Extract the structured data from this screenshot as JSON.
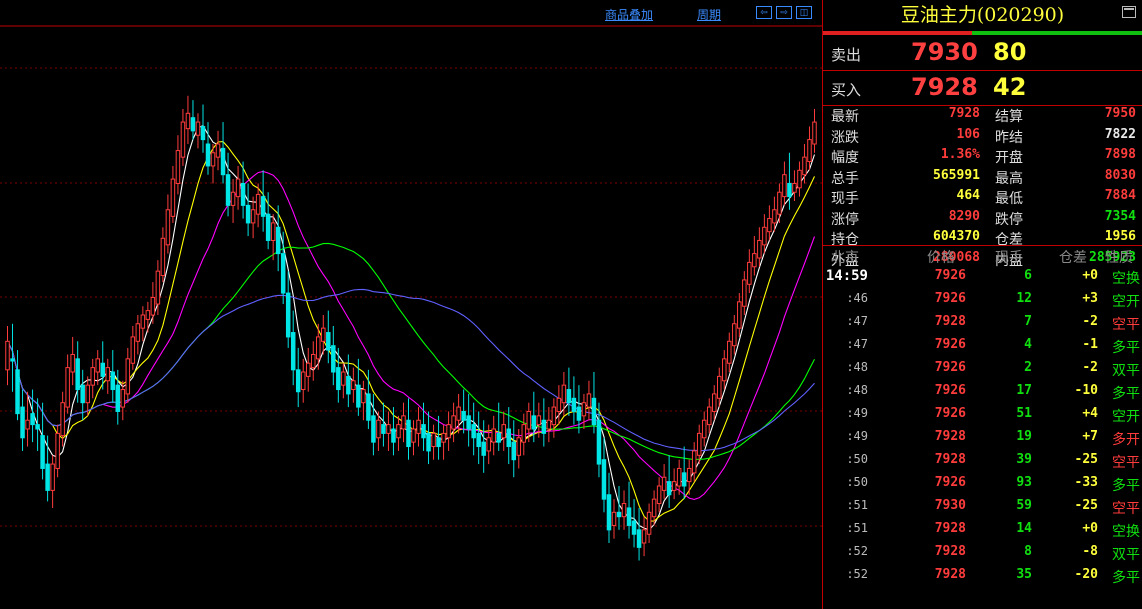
{
  "toolbar": {
    "overlay_label": "商品叠加",
    "period_label": "周期"
  },
  "instrument": {
    "title": "豆油主力(020290)"
  },
  "quote": {
    "sell_label": "卖出",
    "sell_price": "7930",
    "sell_volume": "80",
    "buy_label": "买入",
    "buy_price": "7928",
    "buy_volume": "42"
  },
  "stats": [
    {
      "label": "最新",
      "value": "7928",
      "color": "#ff3c3c",
      "label2": "结算",
      "value2": "7950",
      "color2": "#ff3c3c"
    },
    {
      "label": "涨跌",
      "value": "106",
      "color": "#ff3c3c",
      "label2": "昨结",
      "value2": "7822",
      "color2": "#e8e8e8"
    },
    {
      "label": "幅度",
      "value": "1.36%",
      "color": "#ff3c3c",
      "label2": "开盘",
      "value2": "7898",
      "color2": "#ff3c3c"
    },
    {
      "label": "总手",
      "value": "565991",
      "color": "#ffff3c",
      "label2": "最高",
      "value2": "8030",
      "color2": "#ff3c3c"
    },
    {
      "label": "现手",
      "value": "464",
      "color": "#ffff3c",
      "label2": "最低",
      "value2": "7884",
      "color2": "#ff3c3c"
    },
    {
      "label": "涨停",
      "value": "8290",
      "color": "#ff3c3c",
      "label2": "跌停",
      "value2": "7354",
      "color2": "#10e010"
    },
    {
      "label": "持仓",
      "value": "604370",
      "color": "#ffff3c",
      "label2": "仓差",
      "value2": "1956",
      "color2": "#ffff3c"
    },
    {
      "label": "外盘",
      "value": "280068",
      "color": "#ff3c3c",
      "label2": "内盘",
      "value2": "285923",
      "color2": "#10e010"
    }
  ],
  "ticks_header": {
    "time": "北京",
    "price": "价格",
    "volume": "现手",
    "oi_change": "仓差",
    "nature": "性质"
  },
  "ticks": [
    {
      "time": "14:59",
      "price": "7926",
      "vol": "6",
      "oi": "+0",
      "nature": "空换",
      "pc": "#ff3c3c",
      "oc": "#ffff3c",
      "nc": "#10e010"
    },
    {
      "time": ":46",
      "price": "7926",
      "vol": "12",
      "oi": "+3",
      "nature": "空开",
      "pc": "#ff3c3c",
      "oc": "#ffff3c",
      "nc": "#10e010"
    },
    {
      "time": ":47",
      "price": "7928",
      "vol": "7",
      "oi": "-2",
      "nature": "空平",
      "pc": "#ff3c3c",
      "oc": "#ffff3c",
      "nc": "#ff3c3c"
    },
    {
      "time": ":47",
      "price": "7926",
      "vol": "4",
      "oi": "-1",
      "nature": "多平",
      "pc": "#ff3c3c",
      "oc": "#ffff3c",
      "nc": "#10e010"
    },
    {
      "time": ":48",
      "price": "7926",
      "vol": "2",
      "oi": "-2",
      "nature": "双平",
      "pc": "#ff3c3c",
      "oc": "#ffff3c",
      "nc": "#10e010"
    },
    {
      "time": ":48",
      "price": "7926",
      "vol": "17",
      "oi": "-10",
      "nature": "多平",
      "pc": "#ff3c3c",
      "oc": "#ffff3c",
      "nc": "#10e010"
    },
    {
      "time": ":49",
      "price": "7926",
      "vol": "51",
      "oi": "+4",
      "nature": "空开",
      "pc": "#ff3c3c",
      "oc": "#ffff3c",
      "nc": "#10e010"
    },
    {
      "time": ":49",
      "price": "7928",
      "vol": "19",
      "oi": "+7",
      "nature": "多开",
      "pc": "#ff3c3c",
      "oc": "#ffff3c",
      "nc": "#ff3c3c"
    },
    {
      "time": ":50",
      "price": "7928",
      "vol": "39",
      "oi": "-25",
      "nature": "空平",
      "pc": "#ff3c3c",
      "oc": "#ffff3c",
      "nc": "#ff3c3c"
    },
    {
      "time": ":50",
      "price": "7926",
      "vol": "93",
      "oi": "-33",
      "nature": "多平",
      "pc": "#ff3c3c",
      "oc": "#ffff3c",
      "nc": "#10e010"
    },
    {
      "time": ":51",
      "price": "7930",
      "vol": "59",
      "oi": "-25",
      "nature": "空平",
      "pc": "#ff3c3c",
      "oc": "#ffff3c",
      "nc": "#ff3c3c"
    },
    {
      "time": ":51",
      "price": "7928",
      "vol": "14",
      "oi": "+0",
      "nature": "空换",
      "pc": "#ff3c3c",
      "oc": "#ffff3c",
      "nc": "#10e010"
    },
    {
      "time": ":52",
      "price": "7928",
      "vol": "8",
      "oi": "-8",
      "nature": "双平",
      "pc": "#ff3c3c",
      "oc": "#ffff3c",
      "nc": "#10e010"
    },
    {
      "time": ":52",
      "price": "7928",
      "vol": "35",
      "oi": "-20",
      "nature": "多平",
      "pc": "#ff3c3c",
      "oc": "#ffff3c",
      "nc": "#10e010"
    }
  ],
  "chart_data": {
    "type": "candlestick",
    "candles": [
      [
        7905,
        7925,
        7918,
        7898
      ],
      [
        7910,
        7926,
        7909,
        7895
      ],
      [
        7905,
        7914,
        7885,
        7882
      ],
      [
        7888,
        7896,
        7874,
        7868
      ],
      [
        7878,
        7895,
        7882,
        7870
      ],
      [
        7885,
        7896,
        7880,
        7872
      ],
      [
        7880,
        7892,
        7878,
        7868
      ],
      [
        7875,
        7890,
        7860,
        7855
      ],
      [
        7862,
        7875,
        7850,
        7845
      ],
      [
        7850,
        7866,
        7862,
        7842
      ],
      [
        7860,
        7880,
        7876,
        7856
      ],
      [
        7875,
        7895,
        7890,
        7870
      ],
      [
        7888,
        7912,
        7906,
        7885
      ],
      [
        7904,
        7920,
        7912,
        7898
      ],
      [
        7910,
        7918,
        7896,
        7890
      ],
      [
        7898,
        7905,
        7890,
        7882
      ],
      [
        7890,
        7902,
        7898,
        7884
      ],
      [
        7898,
        7910,
        7906,
        7892
      ],
      [
        7904,
        7914,
        7910,
        7898
      ],
      [
        7908,
        7918,
        7902,
        7896
      ],
      [
        7900,
        7910,
        7906,
        7894
      ],
      [
        7904,
        7914,
        7896,
        7890
      ],
      [
        7898,
        7905,
        7886,
        7880
      ],
      [
        7888,
        7900,
        7896,
        7882
      ],
      [
        7894,
        7915,
        7910,
        7890
      ],
      [
        7908,
        7925,
        7920,
        7905
      ],
      [
        7918,
        7930,
        7926,
        7912
      ],
      [
        7924,
        7934,
        7930,
        7918
      ],
      [
        7928,
        7936,
        7932,
        7922
      ],
      [
        7930,
        7945,
        7938,
        7926
      ],
      [
        7935,
        7955,
        7950,
        7930
      ],
      [
        7948,
        7970,
        7965,
        7945
      ],
      [
        7962,
        7985,
        7978,
        7958
      ],
      [
        7975,
        7998,
        7992,
        7972
      ],
      [
        7990,
        8012,
        8005,
        7985
      ],
      [
        8002,
        8024,
        8018,
        7998
      ],
      [
        8015,
        8030,
        8022,
        8008
      ],
      [
        8020,
        8028,
        8014,
        8010
      ],
      [
        8012,
        8022,
        8018,
        8006
      ],
      [
        8016,
        8026,
        8010,
        8004
      ],
      [
        8008,
        8018,
        7998,
        7994
      ],
      [
        7998,
        8008,
        8004,
        7990
      ],
      [
        8002,
        8014,
        8008,
        7996
      ],
      [
        8006,
        8018,
        7994,
        7990
      ],
      [
        7994,
        8004,
        7980,
        7975
      ],
      [
        7980,
        7992,
        7986,
        7972
      ],
      [
        7984,
        7998,
        7992,
        7978
      ],
      [
        7990,
        8000,
        7980,
        7974
      ],
      [
        7980,
        7990,
        7972,
        7966
      ],
      [
        7972,
        7984,
        7978,
        7965
      ],
      [
        7976,
        7990,
        7985,
        7970
      ],
      [
        7984,
        7996,
        7975,
        7968
      ],
      [
        7976,
        7986,
        7964,
        7960
      ],
      [
        7964,
        7976,
        7972,
        7955
      ],
      [
        7970,
        7980,
        7958,
        7950
      ],
      [
        7958,
        7968,
        7940,
        7935
      ],
      [
        7940,
        7950,
        7920,
        7915
      ],
      [
        7922,
        7932,
        7905,
        7898
      ],
      [
        7905,
        7915,
        7895,
        7888
      ],
      [
        7896,
        7910,
        7904,
        7890
      ],
      [
        7902,
        7915,
        7908,
        7895
      ],
      [
        7906,
        7918,
        7912,
        7900
      ],
      [
        7910,
        7926,
        7920,
        7905
      ],
      [
        7918,
        7930,
        7924,
        7912
      ],
      [
        7922,
        7932,
        7914,
        7908
      ],
      [
        7916,
        7925,
        7904,
        7898
      ],
      [
        7906,
        7915,
        7896,
        7890
      ],
      [
        7898,
        7908,
        7904,
        7892
      ],
      [
        7902,
        7912,
        7894,
        7888
      ],
      [
        7896,
        7906,
        7900,
        7890
      ],
      [
        7898,
        7910,
        7888,
        7884
      ],
      [
        7890,
        7900,
        7896,
        7882
      ],
      [
        7894,
        7905,
        7882,
        7878
      ],
      [
        7884,
        7894,
        7872,
        7866
      ],
      [
        7874,
        7886,
        7882,
        7868
      ],
      [
        7880,
        7890,
        7876,
        7870
      ],
      [
        7876,
        7886,
        7880,
        7868
      ],
      [
        7878,
        7888,
        7872,
        7866
      ],
      [
        7874,
        7884,
        7880,
        7868
      ],
      [
        7878,
        7890,
        7884,
        7872
      ],
      [
        7882,
        7892,
        7870,
        7864
      ],
      [
        7872,
        7882,
        7878,
        7866
      ],
      [
        7876,
        7888,
        7882,
        7870
      ],
      [
        7880,
        7890,
        7874,
        7868
      ],
      [
        7876,
        7886,
        7868,
        7862
      ],
      [
        7870,
        7880,
        7876,
        7864
      ],
      [
        7874,
        7884,
        7870,
        7864
      ],
      [
        7872,
        7880,
        7876,
        7864
      ],
      [
        7874,
        7886,
        7880,
        7868
      ],
      [
        7878,
        7890,
        7884,
        7872
      ],
      [
        7882,
        7894,
        7888,
        7876
      ],
      [
        7886,
        7896,
        7882,
        7876
      ],
      [
        7884,
        7894,
        7878,
        7870
      ],
      [
        7880,
        7890,
        7874,
        7866
      ],
      [
        7876,
        7886,
        7870,
        7862
      ],
      [
        7872,
        7882,
        7866,
        7858
      ],
      [
        7868,
        7880,
        7874,
        7862
      ],
      [
        7872,
        7884,
        7878,
        7866
      ],
      [
        7876,
        7890,
        7872,
        7868
      ],
      [
        7874,
        7886,
        7880,
        7868
      ],
      [
        7878,
        7888,
        7870,
        7862
      ],
      [
        7872,
        7882,
        7864,
        7856
      ],
      [
        7866,
        7878,
        7874,
        7860
      ],
      [
        7872,
        7885,
        7880,
        7866
      ],
      [
        7878,
        7890,
        7886,
        7872
      ],
      [
        7884,
        7895,
        7878,
        7872
      ],
      [
        7880,
        7890,
        7884,
        7874
      ],
      [
        7882,
        7892,
        7876,
        7870
      ],
      [
        7878,
        7888,
        7882,
        7872
      ],
      [
        7880,
        7892,
        7888,
        7874
      ],
      [
        7886,
        7898,
        7892,
        7880
      ],
      [
        7890,
        7904,
        7898,
        7884
      ],
      [
        7896,
        7906,
        7890,
        7884
      ],
      [
        7892,
        7902,
        7886,
        7880
      ],
      [
        7888,
        7898,
        7882,
        7876
      ],
      [
        7884,
        7894,
        7890,
        7878
      ],
      [
        7888,
        7900,
        7894,
        7882
      ],
      [
        7892,
        7904,
        7880,
        7876
      ],
      [
        7882,
        7890,
        7862,
        7856
      ],
      [
        7864,
        7874,
        7846,
        7840
      ],
      [
        7848,
        7858,
        7832,
        7826
      ],
      [
        7834,
        7846,
        7840,
        7828
      ],
      [
        7840,
        7852,
        7838,
        7832
      ],
      [
        7838,
        7850,
        7844,
        7832
      ],
      [
        7842,
        7854,
        7834,
        7828
      ],
      [
        7836,
        7846,
        7830,
        7824
      ],
      [
        7832,
        7842,
        7824,
        7818
      ],
      [
        7826,
        7838,
        7832,
        7820
      ],
      [
        7830,
        7844,
        7840,
        7826
      ],
      [
        7838,
        7850,
        7846,
        7834
      ],
      [
        7844,
        7856,
        7852,
        7840
      ],
      [
        7850,
        7862,
        7856,
        7846
      ],
      [
        7854,
        7866,
        7848,
        7842
      ],
      [
        7850,
        7860,
        7854,
        7846
      ],
      [
        7852,
        7864,
        7860,
        7848
      ],
      [
        7858,
        7870,
        7852,
        7846
      ],
      [
        7854,
        7864,
        7860,
        7848
      ],
      [
        7858,
        7872,
        7868,
        7854
      ],
      [
        7866,
        7880,
        7876,
        7862
      ],
      [
        7874,
        7886,
        7882,
        7870
      ],
      [
        7880,
        7892,
        7888,
        7876
      ],
      [
        7886,
        7898,
        7894,
        7882
      ],
      [
        7892,
        7906,
        7902,
        7888
      ],
      [
        7900,
        7914,
        7910,
        7896
      ],
      [
        7908,
        7922,
        7918,
        7904
      ],
      [
        7916,
        7930,
        7926,
        7912
      ],
      [
        7924,
        7940,
        7936,
        7920
      ],
      [
        7934,
        7950,
        7946,
        7930
      ],
      [
        7944,
        7960,
        7954,
        7940
      ],
      [
        7952,
        7966,
        7958,
        7948
      ],
      [
        7956,
        7970,
        7964,
        7952
      ],
      [
        7962,
        7976,
        7970,
        7958
      ],
      [
        7968,
        7980,
        7974,
        7964
      ],
      [
        7972,
        7984,
        7978,
        7968
      ],
      [
        7976,
        7990,
        7986,
        7972
      ],
      [
        7984,
        8000,
        7994,
        7980
      ],
      [
        7990,
        8004,
        7984,
        7978
      ],
      [
        7986,
        7996,
        7990,
        7982
      ],
      [
        7988,
        8000,
        7996,
        7984
      ],
      [
        7994,
        8008,
        8002,
        7990
      ],
      [
        8000,
        8016,
        8010,
        7996
      ],
      [
        8008,
        8024,
        8018,
        8004
      ]
    ],
    "ma_colors": [
      "#ffffff",
      "#ffff00",
      "#ff00ff",
      "#00ff00",
      "#6060ff"
    ],
    "y_range": [
      7800,
      8060
    ]
  }
}
